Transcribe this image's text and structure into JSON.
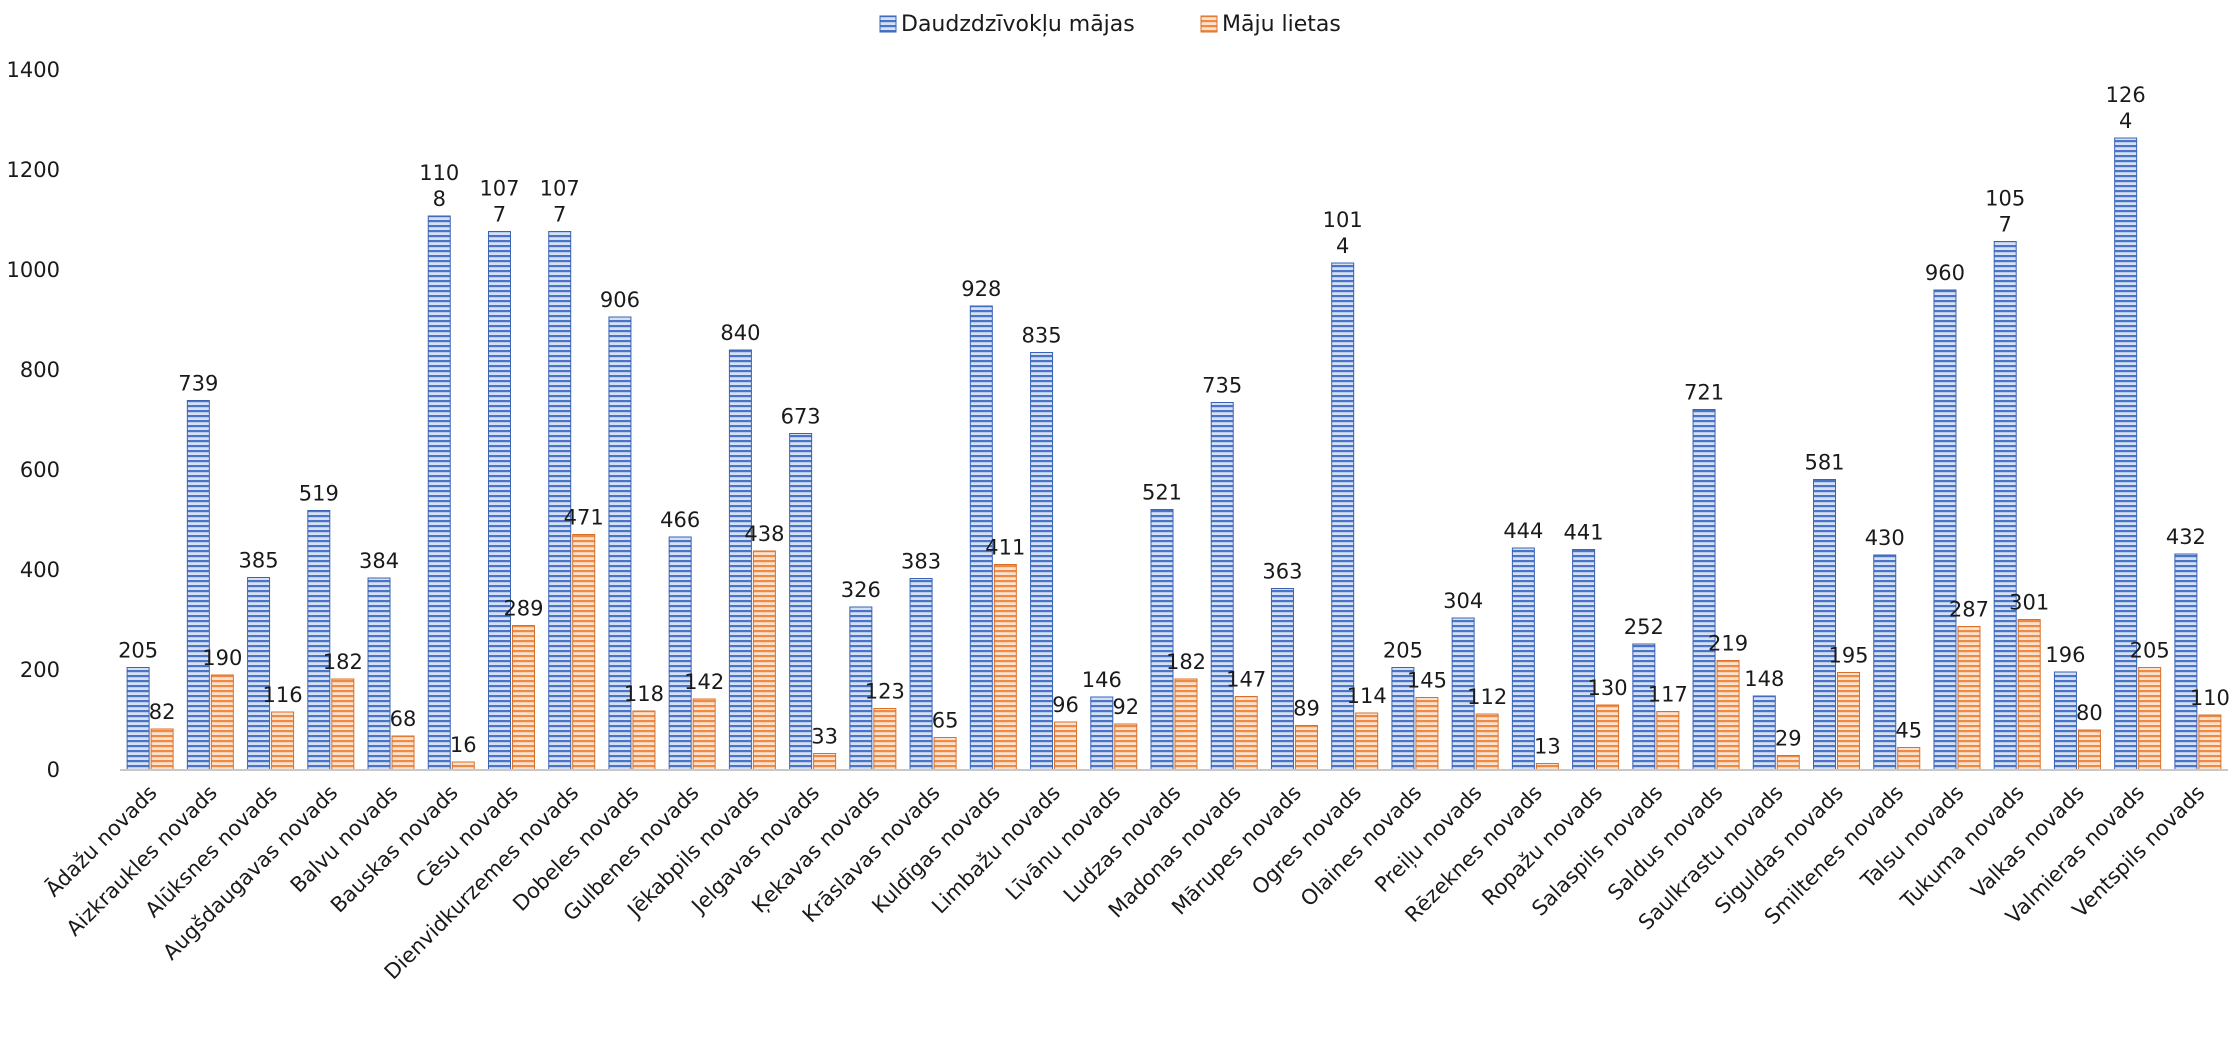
{
  "chart_data": {
    "type": "bar",
    "title": "",
    "xlabel": "",
    "ylabel": "",
    "ylim": [
      0,
      1400
    ],
    "yticks": [
      0,
      200,
      400,
      600,
      800,
      1000,
      1200,
      1400
    ],
    "grid": false,
    "legend_position": "top",
    "categories": [
      "Ādažu novads",
      "Aizkraukles novads",
      "Alūksnes novads",
      "Augšdaugavas novads",
      "Balvu novads",
      "Bauskas novads",
      "Cēsu novads",
      "Dienvidkurzemes novads",
      "Dobeles novads",
      "Gulbenes novads",
      "Jēkabpils novads",
      "Jelgavas novads",
      "Ķekavas novads",
      "Krāslavas novads",
      "Kuldīgas novads",
      "Limbažu novads",
      "Līvānu novads",
      "Ludzas novads",
      "Madonas novads",
      "Mārupes novads",
      "Ogres novads",
      "Olaines novads",
      "Preiļu novads",
      "Rēzeknes novads",
      "Ropažu novads",
      "Salaspils novads",
      "Saldus novads",
      "Saulkrastu novads",
      "Siguldas novads",
      "Smiltenes novads",
      "Talsu novads",
      "Tukuma novads",
      "Valkas novads",
      "Valmieras novads",
      "Ventspils novads"
    ],
    "series": [
      {
        "name": "Daudzdzīvokļu mājas",
        "color": "#4472c4",
        "values": [
          205,
          739,
          385,
          519,
          384,
          1108,
          1077,
          1077,
          906,
          466,
          840,
          673,
          326,
          383,
          928,
          835,
          146,
          521,
          735,
          363,
          1014,
          205,
          304,
          444,
          441,
          252,
          721,
          148,
          581,
          430,
          960,
          1057,
          196,
          1264,
          432
        ]
      },
      {
        "name": "Māju lietas",
        "color": "#ed7d31",
        "values": [
          82,
          190,
          116,
          182,
          68,
          16,
          289,
          471,
          118,
          142,
          438,
          33,
          123,
          65,
          411,
          96,
          92,
          182,
          147,
          89,
          114,
          145,
          112,
          13,
          130,
          117,
          219,
          29,
          195,
          45,
          287,
          301,
          80,
          205,
          110
        ]
      }
    ],
    "value_labels": {
      "series_0": [
        "205",
        "739",
        "385",
        "519",
        "384",
        "110\n8",
        "107\n7",
        "107\n7",
        "906",
        "466",
        "840",
        "673",
        "326",
        "383",
        "928",
        "835",
        "146",
        "521",
        "735",
        "363",
        "101\n4",
        "205",
        "304",
        "444",
        "441",
        "252",
        "721",
        "148",
        "581",
        "430",
        "960",
        "105\n7",
        "196",
        "126\n4",
        "432"
      ],
      "series_1": [
        "82",
        "190",
        "116",
        "182",
        "68",
        "16",
        "289",
        "471",
        "118",
        "142",
        "438",
        "33",
        "123",
        "65",
        "411",
        "96",
        "92",
        "182",
        "147",
        "89",
        "114",
        "145",
        "112",
        "13",
        "130",
        "117",
        "219",
        "29",
        "195",
        "45",
        "287",
        "301",
        "80",
        "205",
        "110"
      ]
    }
  }
}
